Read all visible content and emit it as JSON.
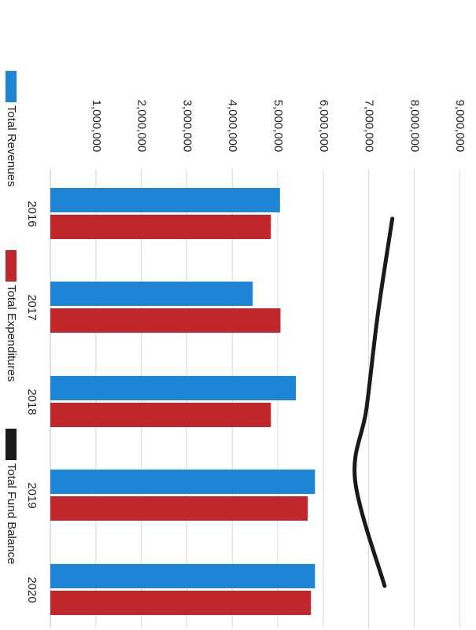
{
  "chart_data": {
    "type": "bar",
    "orientation": "rotated-90-cw",
    "categories": [
      "2016",
      "2017",
      "2018",
      "2019",
      "2020"
    ],
    "series": [
      {
        "name": "Total Revenues",
        "kind": "bar",
        "color": "#1f86d6",
        "values": [
          5050000,
          4450000,
          5400000,
          5820000,
          5820000
        ]
      },
      {
        "name": "Total Expenditures",
        "kind": "bar",
        "color": "#c0272d",
        "values": [
          4850000,
          5060000,
          4850000,
          5660000,
          5730000
        ]
      },
      {
        "name": "Total Fund Balance",
        "kind": "line",
        "color": "#1a1a1a",
        "values": [
          7520000,
          7200000,
          6950000,
          6700000,
          7350000
        ]
      }
    ],
    "value_ticks": [
      "1,000,000",
      "2,000,000",
      "3,000,000",
      "4,000,000",
      "5,000,000",
      "6,000,000",
      "7,000,000",
      "8,000,000",
      "9,000,000"
    ],
    "ylim": [
      0,
      9000000
    ],
    "grid": true,
    "legend_position": "bottom"
  }
}
